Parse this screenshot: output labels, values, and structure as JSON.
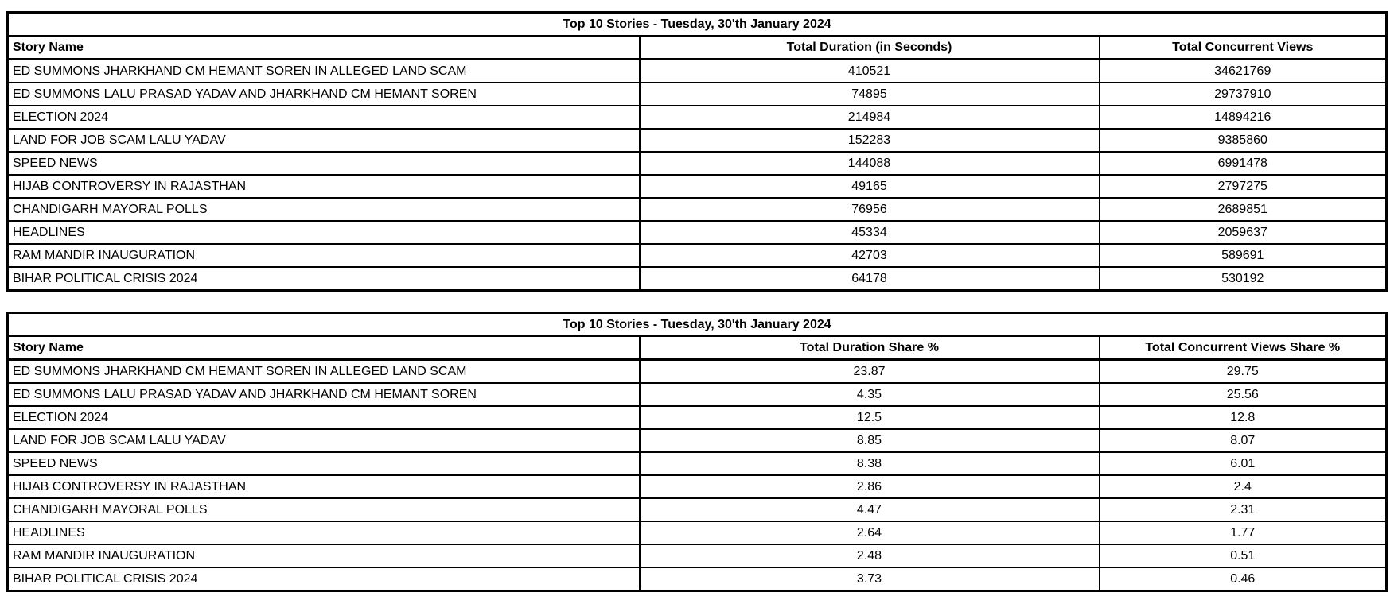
{
  "report": {
    "background": "#ffffff",
    "text_color": "#000000",
    "border_color": "#000000"
  },
  "chart_data": [
    {
      "type": "table",
      "title": "Top 10 Stories - Tuesday, 30'th January 2024",
      "columns": [
        "Story Name",
        "Total Duration (in Seconds)",
        "Total Concurrent Views"
      ],
      "rows": [
        [
          "ED SUMMONS JHARKHAND CM HEMANT SOREN IN ALLEGED LAND SCAM",
          "410521",
          "34621769"
        ],
        [
          "ED SUMMONS LALU PRASAD YADAV AND JHARKHAND CM HEMANT SOREN",
          "74895",
          "29737910"
        ],
        [
          "ELECTION 2024",
          "214984",
          "14894216"
        ],
        [
          "LAND FOR JOB SCAM LALU YADAV",
          "152283",
          "9385860"
        ],
        [
          "SPEED NEWS",
          "144088",
          "6991478"
        ],
        [
          "HIJAB CONTROVERSY IN RAJASTHAN",
          "49165",
          "2797275"
        ],
        [
          "CHANDIGARH MAYORAL POLLS",
          "76956",
          "2689851"
        ],
        [
          "HEADLINES",
          "45334",
          "2059637"
        ],
        [
          "RAM MANDIR INAUGURATION",
          "42703",
          "589691"
        ],
        [
          "BIHAR POLITICAL CRISIS 2024",
          "64178",
          "530192"
        ]
      ]
    },
    {
      "type": "table",
      "title": "Top 10 Stories - Tuesday, 30'th January 2024",
      "columns": [
        "Story Name",
        "Total Duration Share %",
        "Total Concurrent Views Share %"
      ],
      "rows": [
        [
          "ED SUMMONS JHARKHAND CM HEMANT SOREN IN ALLEGED LAND SCAM",
          "23.87",
          "29.75"
        ],
        [
          "ED SUMMONS LALU PRASAD YADAV AND JHARKHAND CM HEMANT SOREN",
          "4.35",
          "25.56"
        ],
        [
          "ELECTION 2024",
          "12.5",
          "12.8"
        ],
        [
          "LAND FOR JOB SCAM LALU YADAV",
          "8.85",
          "8.07"
        ],
        [
          "SPEED NEWS",
          "8.38",
          "6.01"
        ],
        [
          "HIJAB CONTROVERSY IN RAJASTHAN",
          "2.86",
          "2.4"
        ],
        [
          "CHANDIGARH MAYORAL POLLS",
          "4.47",
          "2.31"
        ],
        [
          "HEADLINES",
          "2.64",
          "1.77"
        ],
        [
          "RAM MANDIR INAUGURATION",
          "2.48",
          "0.51"
        ],
        [
          "BIHAR POLITICAL CRISIS 2024",
          "3.73",
          "0.46"
        ]
      ]
    }
  ]
}
